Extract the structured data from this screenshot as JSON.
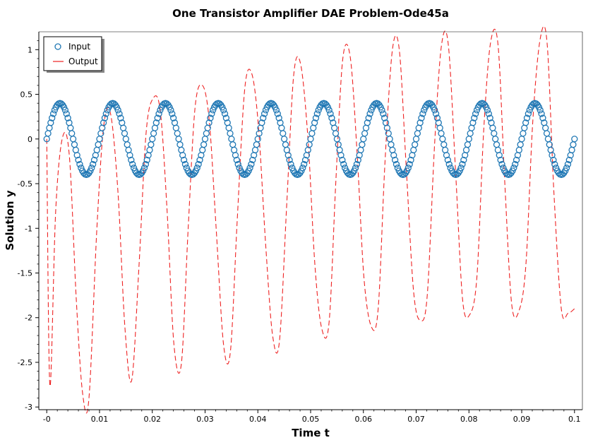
{
  "chart_data": {
    "type": "line",
    "title": "One Transistor Amplifier DAE Problem-Ode45a",
    "xlabel": "Time t",
    "ylabel": "Solution y",
    "xlim": [
      -0.0015,
      0.1015
    ],
    "ylim": [
      -3.03,
      1.2
    ],
    "xticks": [
      0,
      0.01,
      0.02,
      0.03,
      0.04,
      0.05,
      0.06,
      0.07,
      0.08,
      0.09,
      0.1
    ],
    "xtick_labels": [
      "-0",
      "0.01",
      "0.02",
      "0.03",
      "0.04",
      "0.05",
      "0.06",
      "0.07",
      "0.08",
      "0.09",
      "0.1"
    ],
    "yticks": [
      1,
      0.5,
      0,
      -0.5,
      -1,
      -1.5,
      -2,
      -2.5,
      -3
    ],
    "ytick_labels": [
      "1",
      "0.5",
      "0",
      "-0.5",
      "-1",
      "-1.5",
      "-2",
      "-2.5",
      "-3"
    ],
    "grid": false,
    "legend_position": "top-left",
    "series": [
      {
        "name": "Input",
        "style": "circle-markers",
        "color": "#1f77b4",
        "x_range": [
          0,
          0.1
        ],
        "amplitude": 0.4,
        "period": 0.01,
        "num_points": 400
      },
      {
        "name": "Output",
        "style": "dashed-line",
        "color": "#ee2222",
        "x": [
          0,
          0.0006,
          0.0017,
          0.003,
          0.0043,
          0.0056,
          0.0068,
          0.008,
          0.0095,
          0.0108,
          0.0121,
          0.0135,
          0.0148,
          0.0161,
          0.0175,
          0.0188,
          0.0201,
          0.0215,
          0.0228,
          0.0241,
          0.0255,
          0.0268,
          0.0281,
          0.0295,
          0.0308,
          0.0321,
          0.0335,
          0.0348,
          0.0361,
          0.0375,
          0.0388,
          0.0401,
          0.0415,
          0.0428,
          0.0441,
          0.0455,
          0.0468,
          0.0481,
          0.0495,
          0.0508,
          0.0521,
          0.0535,
          0.0548,
          0.0561,
          0.0575,
          0.0588,
          0.0601,
          0.0615,
          0.0628,
          0.0641,
          0.0655,
          0.0668,
          0.0681,
          0.0695,
          0.0708,
          0.0721,
          0.0735,
          0.0748,
          0.0761,
          0.0775,
          0.0788,
          0.0801,
          0.0815,
          0.0828,
          0.0841,
          0.0855,
          0.0868,
          0.0881,
          0.0895,
          0.0908,
          0.0921,
          0.0935,
          0.0948,
          0.0961,
          0.0975,
          0.0988,
          0.1
        ],
        "y": [
          0,
          -2.76,
          -0.8,
          0.02,
          -0.2,
          -1.8,
          -2.85,
          -2.9,
          -1.0,
          0.15,
          0.28,
          -0.6,
          -2.1,
          -2.7,
          -1.4,
          0.05,
          0.45,
          0.32,
          -0.8,
          -2.3,
          -2.52,
          -1.0,
          0.35,
          0.6,
          0.2,
          -1.0,
          -2.3,
          -2.38,
          -0.9,
          0.55,
          0.74,
          0.15,
          -1.2,
          -2.2,
          -2.26,
          -0.7,
          0.72,
          0.84,
          0.0,
          -1.4,
          -2.12,
          -2.05,
          -0.45,
          0.9,
          0.92,
          -0.15,
          -1.55,
          -2.1,
          -1.9,
          -0.25,
          1.0,
          1.0,
          -0.3,
          -1.7,
          -2.03,
          -1.75,
          -0.05,
          1.05,
          1.05,
          -0.4,
          -1.8,
          -1.97,
          -1.55,
          0.1,
          1.08,
          1.06,
          -0.5,
          -1.85,
          -1.92,
          -1.4,
          0.2,
          1.12,
          1.08,
          -0.6,
          -1.9,
          -1.95,
          -1.9
        ]
      }
    ]
  }
}
